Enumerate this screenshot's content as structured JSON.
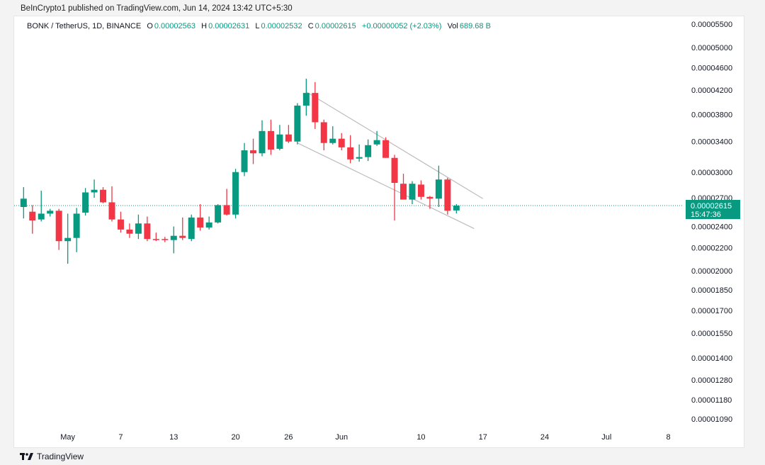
{
  "header": {
    "published": "BeInCrypto1 published on TradingView.com, Jun 14, 2024 13:42 UTC+5:30"
  },
  "legend": {
    "symbol": "BONK / TetherUS, 1D, BINANCE",
    "o_label": "O",
    "o_value": "0.00002563",
    "h_label": "H",
    "h_value": "0.00002631",
    "l_label": "L",
    "l_value": "0.00002532",
    "c_label": "C",
    "c_value": "0.00002615",
    "change": "+0.00000052 (+2.03%)",
    "vol_label": "Vol",
    "vol_value": "689.68 B"
  },
  "price_tag": {
    "price": "0.00002615",
    "countdown": "15:47:36"
  },
  "footer": {
    "brand": "TradingView"
  },
  "colors": {
    "up": "#089981",
    "down": "#f23645",
    "last_price_line": "#089981",
    "channel": "#bdbdbd"
  },
  "chart_data": {
    "type": "candlestick",
    "scale": "log",
    "y_ticks": [
      "0.00005500",
      "0.00005000",
      "0.00004600",
      "0.00004200",
      "0.00003800",
      "0.00003400",
      "0.00003000",
      "0.00002700",
      "0.00002400",
      "0.00002200",
      "0.00002000",
      "0.00001850",
      "0.00001700",
      "0.00001550",
      "0.00001400",
      "0.00001280",
      "0.00001180",
      "0.00001090"
    ],
    "x_ticks": [
      {
        "label": "May",
        "date": "2024-05-01"
      },
      {
        "label": "7",
        "date": "2024-05-07"
      },
      {
        "label": "13",
        "date": "2024-05-13"
      },
      {
        "label": "20",
        "date": "2024-05-20"
      },
      {
        "label": "26",
        "date": "2024-05-26"
      },
      {
        "label": "Jun",
        "date": "2024-06-01"
      },
      {
        "label": "10",
        "date": "2024-06-10"
      },
      {
        "label": "17",
        "date": "2024-06-17"
      },
      {
        "label": "24",
        "date": "2024-06-24"
      },
      {
        "label": "Jul",
        "date": "2024-07-01"
      },
      {
        "label": "8",
        "date": "2024-07-08"
      }
    ],
    "x_range": [
      "2024-04-25",
      "2024-07-09"
    ],
    "candles": [
      {
        "date": "2024-04-26",
        "o": 2.6,
        "h": 2.82,
        "l": 2.48,
        "c": 2.69
      },
      {
        "date": "2024-04-27",
        "o": 2.55,
        "h": 2.62,
        "l": 2.33,
        "c": 2.46
      },
      {
        "date": "2024-04-28",
        "o": 2.47,
        "h": 2.78,
        "l": 2.45,
        "c": 2.53
      },
      {
        "date": "2024-04-29",
        "o": 2.53,
        "h": 2.58,
        "l": 2.5,
        "c": 2.56
      },
      {
        "date": "2024-04-30",
        "o": 2.56,
        "h": 2.58,
        "l": 2.18,
        "c": 2.26
      },
      {
        "date": "2024-05-01",
        "o": 2.26,
        "h": 2.53,
        "l": 2.06,
        "c": 2.29
      },
      {
        "date": "2024-05-02",
        "o": 2.29,
        "h": 2.59,
        "l": 2.16,
        "c": 2.53
      },
      {
        "date": "2024-05-03",
        "o": 2.54,
        "h": 2.81,
        "l": 2.51,
        "c": 2.76
      },
      {
        "date": "2024-05-04",
        "o": 2.76,
        "h": 2.91,
        "l": 2.7,
        "c": 2.79
      },
      {
        "date": "2024-05-05",
        "o": 2.79,
        "h": 2.82,
        "l": 2.64,
        "c": 2.65
      },
      {
        "date": "2024-05-06",
        "o": 2.65,
        "h": 2.83,
        "l": 2.45,
        "c": 2.47
      },
      {
        "date": "2024-05-07",
        "o": 2.47,
        "h": 2.55,
        "l": 2.34,
        "c": 2.37
      },
      {
        "date": "2024-05-08",
        "o": 2.37,
        "h": 2.43,
        "l": 2.29,
        "c": 2.33
      },
      {
        "date": "2024-05-09",
        "o": 2.33,
        "h": 2.52,
        "l": 2.28,
        "c": 2.43
      },
      {
        "date": "2024-05-10",
        "o": 2.43,
        "h": 2.5,
        "l": 2.26,
        "c": 2.28
      },
      {
        "date": "2024-05-11",
        "o": 2.28,
        "h": 2.34,
        "l": 2.26,
        "c": 2.27
      },
      {
        "date": "2024-05-12",
        "o": 2.28,
        "h": 2.3,
        "l": 2.25,
        "c": 2.27
      },
      {
        "date": "2024-05-13",
        "o": 2.27,
        "h": 2.4,
        "l": 2.15,
        "c": 2.31
      },
      {
        "date": "2024-05-14",
        "o": 2.31,
        "h": 2.49,
        "l": 2.27,
        "c": 2.29
      },
      {
        "date": "2024-05-15",
        "o": 2.28,
        "h": 2.52,
        "l": 2.26,
        "c": 2.49
      },
      {
        "date": "2024-05-16",
        "o": 2.49,
        "h": 2.63,
        "l": 2.36,
        "c": 2.39
      },
      {
        "date": "2024-05-17",
        "o": 2.39,
        "h": 2.5,
        "l": 2.37,
        "c": 2.44
      },
      {
        "date": "2024-05-18",
        "o": 2.44,
        "h": 2.63,
        "l": 2.43,
        "c": 2.62
      },
      {
        "date": "2024-05-19",
        "o": 2.62,
        "h": 2.8,
        "l": 2.51,
        "c": 2.52
      },
      {
        "date": "2024-05-20",
        "o": 2.52,
        "h": 3.04,
        "l": 2.48,
        "c": 3.0
      },
      {
        "date": "2024-05-21",
        "o": 3.0,
        "h": 3.38,
        "l": 2.95,
        "c": 3.28
      },
      {
        "date": "2024-05-22",
        "o": 3.28,
        "h": 3.44,
        "l": 3.1,
        "c": 3.24
      },
      {
        "date": "2024-05-23",
        "o": 3.24,
        "h": 3.71,
        "l": 3.2,
        "c": 3.55
      },
      {
        "date": "2024-05-24",
        "o": 3.55,
        "h": 3.72,
        "l": 3.22,
        "c": 3.29
      },
      {
        "date": "2024-05-25",
        "o": 3.3,
        "h": 3.64,
        "l": 3.28,
        "c": 3.5
      },
      {
        "date": "2024-05-26",
        "o": 3.5,
        "h": 3.64,
        "l": 3.38,
        "c": 3.4
      },
      {
        "date": "2024-05-27",
        "o": 3.4,
        "h": 3.98,
        "l": 3.36,
        "c": 3.94
      },
      {
        "date": "2024-05-28",
        "o": 3.94,
        "h": 4.4,
        "l": 3.78,
        "c": 4.15
      },
      {
        "date": "2024-05-29",
        "o": 4.15,
        "h": 4.34,
        "l": 3.58,
        "c": 3.68
      },
      {
        "date": "2024-05-30",
        "o": 3.68,
        "h": 3.72,
        "l": 3.28,
        "c": 3.38
      },
      {
        "date": "2024-05-31",
        "o": 3.38,
        "h": 3.62,
        "l": 3.36,
        "c": 3.44
      },
      {
        "date": "2024-06-01",
        "o": 3.44,
        "h": 3.52,
        "l": 3.28,
        "c": 3.32
      },
      {
        "date": "2024-06-02",
        "o": 3.32,
        "h": 3.49,
        "l": 3.11,
        "c": 3.16
      },
      {
        "date": "2024-06-03",
        "o": 3.17,
        "h": 3.36,
        "l": 3.13,
        "c": 3.19
      },
      {
        "date": "2024-06-04",
        "o": 3.19,
        "h": 3.43,
        "l": 3.14,
        "c": 3.35
      },
      {
        "date": "2024-06-05",
        "o": 3.36,
        "h": 3.55,
        "l": 3.34,
        "c": 3.42
      },
      {
        "date": "2024-06-06",
        "o": 3.42,
        "h": 3.46,
        "l": 3.18,
        "c": 3.18
      },
      {
        "date": "2024-06-07",
        "o": 3.18,
        "h": 3.22,
        "l": 2.46,
        "c": 2.87
      },
      {
        "date": "2024-06-08",
        "o": 2.86,
        "h": 2.98,
        "l": 2.68,
        "c": 2.68
      },
      {
        "date": "2024-06-09",
        "o": 2.68,
        "h": 2.89,
        "l": 2.63,
        "c": 2.86
      },
      {
        "date": "2024-06-10",
        "o": 2.85,
        "h": 2.9,
        "l": 2.68,
        "c": 2.71
      },
      {
        "date": "2024-06-11",
        "o": 2.71,
        "h": 2.72,
        "l": 2.58,
        "c": 2.69
      },
      {
        "date": "2024-06-12",
        "o": 2.69,
        "h": 3.08,
        "l": 2.6,
        "c": 2.91
      },
      {
        "date": "2024-06-13",
        "o": 2.91,
        "h": 2.93,
        "l": 2.52,
        "c": 2.56
      },
      {
        "date": "2024-06-14",
        "o": 2.563,
        "h": 2.631,
        "l": 2.532,
        "c": 2.615
      }
    ],
    "channel_lines": [
      {
        "from": {
          "date": "2024-05-28",
          "value": 4.17
        },
        "to": {
          "date": "2024-06-17",
          "value": 2.69
        }
      },
      {
        "from": {
          "date": "2024-05-27",
          "value": 3.38
        },
        "to": {
          "date": "2024-06-16",
          "value": 2.38
        }
      }
    ],
    "last_price": 2.615
  }
}
